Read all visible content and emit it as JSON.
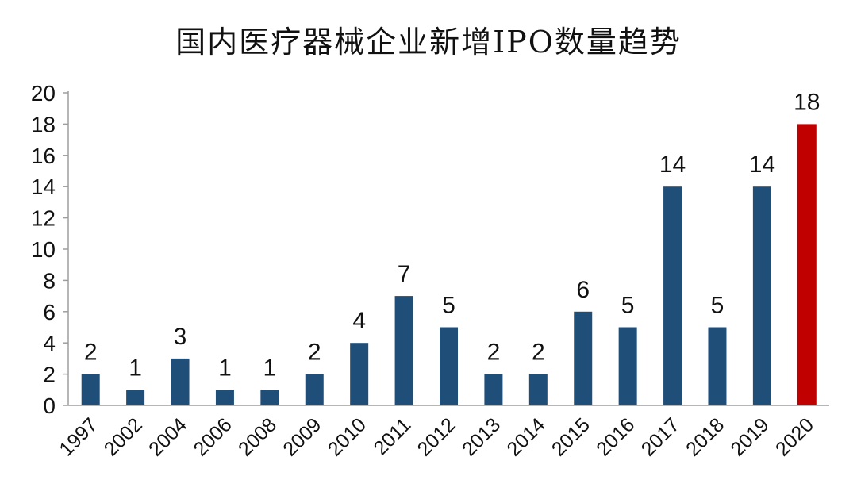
{
  "chart_data": {
    "type": "bar",
    "title": "国内医疗器械企业新增IPO数量趋势",
    "xlabel": "",
    "ylabel": "",
    "categories": [
      "1997",
      "2002",
      "2004",
      "2006",
      "2008",
      "2009",
      "2010",
      "2011",
      "2012",
      "2013",
      "2014",
      "2015",
      "2016",
      "2017",
      "2018",
      "2019",
      "2020"
    ],
    "values": [
      2,
      1,
      3,
      1,
      1,
      2,
      4,
      7,
      5,
      2,
      2,
      6,
      5,
      14,
      5,
      14,
      18
    ],
    "ylim": [
      0,
      20
    ],
    "yticks": [
      "0",
      "2",
      "4",
      "6",
      "8",
      "10",
      "12",
      "14",
      "16",
      "18",
      "20"
    ],
    "grid": false,
    "legend": "none",
    "colors": {
      "bar": "#1f4e79",
      "highlight": "#c00000",
      "axis": "#9e9e9e",
      "text": "#111111"
    },
    "highlight_category": "2020"
  }
}
